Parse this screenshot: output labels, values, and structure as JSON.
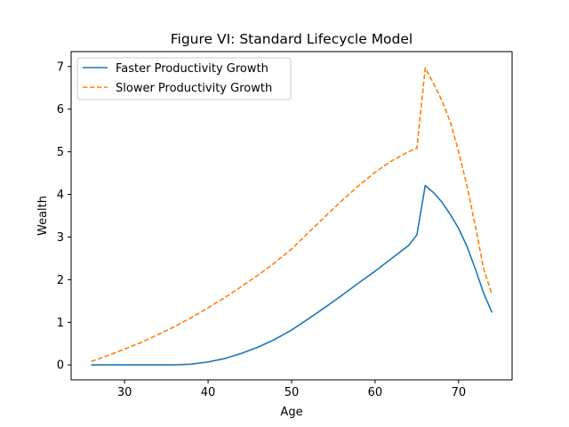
{
  "chart_data": {
    "type": "line",
    "title": "Figure VI: Standard Lifecycle Model",
    "xlabel": "Age",
    "ylabel": "Wealth",
    "xlim": [
      23.6,
      76.4
    ],
    "ylim": [
      -0.35,
      7.35
    ],
    "xticks": [
      30,
      40,
      50,
      60,
      70
    ],
    "yticks": [
      0,
      1,
      2,
      3,
      4,
      5,
      6,
      7
    ],
    "grid": false,
    "legend_position": "top-left",
    "series": [
      {
        "name": "Faster Productivity Growth",
        "color": "#1f77b4",
        "style": "solid",
        "x": [
          26,
          28,
          30,
          32,
          34,
          36,
          38,
          40,
          42,
          44,
          46,
          48,
          50,
          52,
          54,
          56,
          58,
          60,
          62,
          64,
          65,
          66,
          67,
          68,
          69,
          70,
          71,
          72,
          73,
          74
        ],
        "y": [
          0,
          0,
          0,
          0,
          0,
          0,
          0.02,
          0.07,
          0.15,
          0.27,
          0.42,
          0.6,
          0.82,
          1.08,
          1.35,
          1.63,
          1.92,
          2.2,
          2.5,
          2.8,
          3.05,
          4.21,
          4.04,
          3.82,
          3.53,
          3.2,
          2.78,
          2.25,
          1.68,
          1.23
        ]
      },
      {
        "name": "Slower Productivity Growth",
        "color": "#ff7f0e",
        "style": "dashed",
        "x": [
          26,
          28,
          30,
          32,
          34,
          36,
          38,
          40,
          42,
          44,
          46,
          48,
          50,
          52,
          54,
          56,
          58,
          60,
          62,
          64,
          65,
          66,
          67,
          68,
          69,
          70,
          71,
          72,
          73,
          74
        ],
        "y": [
          0.08,
          0.22,
          0.37,
          0.53,
          0.71,
          0.9,
          1.11,
          1.34,
          1.58,
          1.84,
          2.11,
          2.4,
          2.72,
          3.1,
          3.48,
          3.85,
          4.2,
          4.52,
          4.79,
          5.0,
          5.08,
          6.97,
          6.6,
          6.2,
          5.7,
          5.0,
          4.2,
          3.25,
          2.25,
          1.65
        ]
      }
    ]
  }
}
